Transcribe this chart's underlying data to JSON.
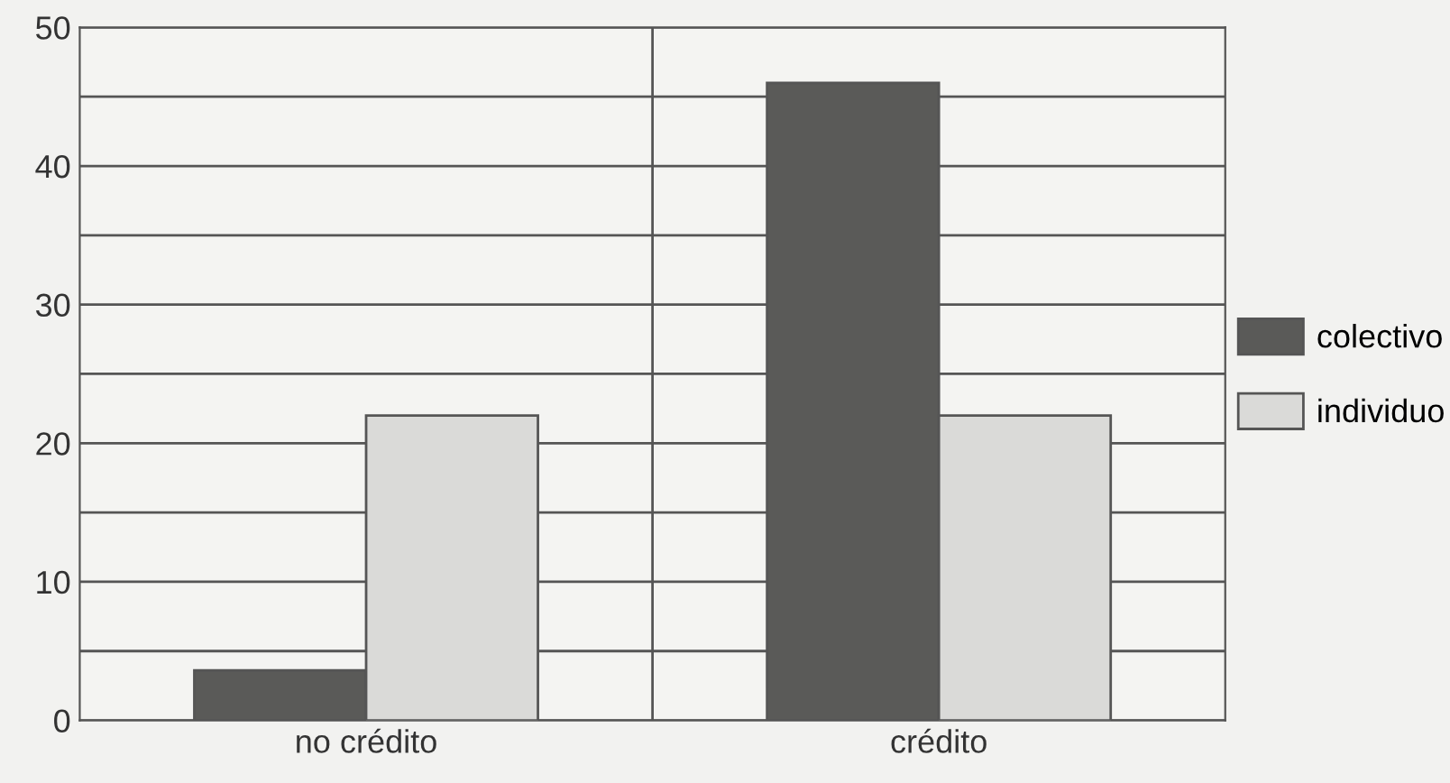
{
  "chart_data": {
    "type": "bar",
    "categories": [
      "no crédito",
      "crédito"
    ],
    "series": [
      {
        "name": "colectivo",
        "color": "#5a5a58",
        "values": [
          3.6,
          46
        ]
      },
      {
        "name": "individuo",
        "color": "#dadad8",
        "values": [
          22,
          22
        ]
      }
    ],
    "ylim": [
      0,
      50
    ],
    "yticks": [
      0,
      {
        "value": 5,
        "label": null
      },
      10,
      {
        "value": 15,
        "label": null
      },
      20,
      {
        "value": 25,
        "label": null
      },
      30,
      {
        "value": 35,
        "label": null
      },
      40,
      {
        "value": 45,
        "label": null
      },
      50
    ],
    "grid": "y",
    "legend": "right"
  }
}
